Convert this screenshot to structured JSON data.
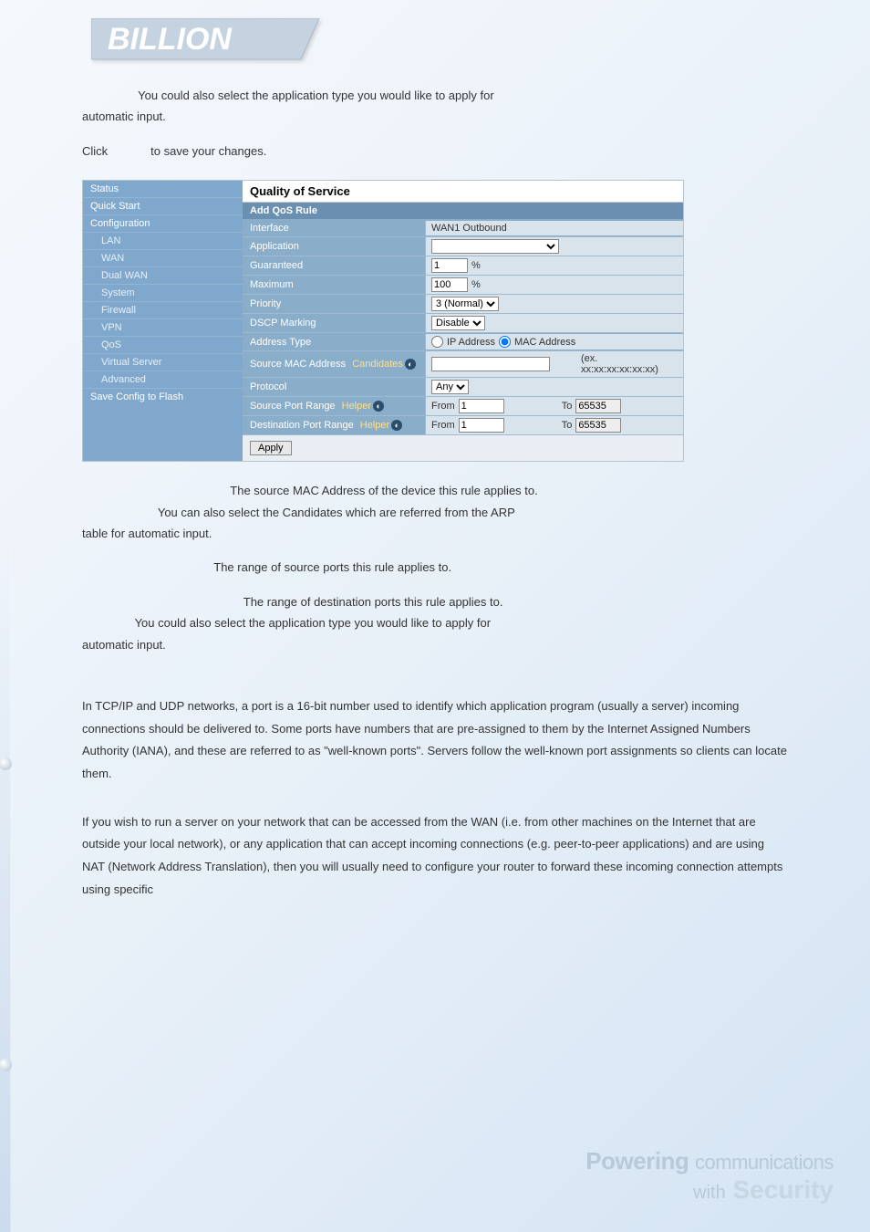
{
  "logo": {
    "color": "#b5c5d5"
  },
  "intro_para1_part1": "You could also select the application type you would like to apply for",
  "intro_para1_part2": "automatic input.",
  "click_text": "Click",
  "click_tail": "to save your changes.",
  "panel": {
    "sidebar": {
      "items": [
        {
          "label": "Status",
          "indent": false
        },
        {
          "label": "Quick Start",
          "indent": false
        },
        {
          "label": "Configuration",
          "indent": false
        },
        {
          "label": "LAN",
          "indent": true
        },
        {
          "label": "WAN",
          "indent": true
        },
        {
          "label": "Dual WAN",
          "indent": true
        },
        {
          "label": "System",
          "indent": true
        },
        {
          "label": "Firewall",
          "indent": true
        },
        {
          "label": "VPN",
          "indent": true
        },
        {
          "label": "QoS",
          "indent": true
        },
        {
          "label": "Virtual Server",
          "indent": true
        },
        {
          "label": "Advanced",
          "indent": true
        },
        {
          "label": "Save Config to Flash",
          "indent": false
        }
      ],
      "bg": "#7fa8cc"
    },
    "title": "Quality of Service",
    "subtitle": "Add QoS Rule",
    "rows": [
      {
        "label": "Interface",
        "type": "text",
        "value": "WAN1 Outbound"
      },
      {
        "label": "Application",
        "type": "select_empty",
        "value": ""
      },
      {
        "label": "Guaranteed",
        "type": "pct",
        "value": "1",
        "suffix": "%"
      },
      {
        "label": "Maximum",
        "type": "pct",
        "value": "100",
        "suffix": "%"
      },
      {
        "label": "Priority",
        "type": "select",
        "value": "3 (Normal)"
      },
      {
        "label": "DSCP Marking",
        "type": "select",
        "value": "Disable"
      },
      {
        "label": "Address Type",
        "type": "radio",
        "opt1": "IP Address",
        "opt2": "MAC Address",
        "checked": 2
      },
      {
        "label": "Source MAC Address",
        "sublink": "Candidates",
        "circ": true,
        "type": "mac",
        "value": "",
        "hint": "(ex. xx:xx:xx:xx:xx:xx)"
      },
      {
        "label": "Protocol",
        "type": "select",
        "value": "Any"
      },
      {
        "label": "Source Port Range",
        "sublink": "Helper",
        "circ": true,
        "type": "range",
        "from": "1",
        "to": "65535"
      },
      {
        "label": "Destination Port Range",
        "sublink": "Helper",
        "circ": true,
        "type": "range",
        "from": "1",
        "to": "65535"
      }
    ],
    "apply": "Apply",
    "row_bg": "#8aadc9",
    "field_bg": "#d8e3ec",
    "sub_bg": "#6a8fb0"
  },
  "src_mac_line1": "The source MAC Address of the device this rule applies to.",
  "candidates_line_part1": "You can also select the Candidates which are referred from the ARP",
  "candidates_line_part2": "table for automatic input.",
  "src_port_line": "The range of source ports this rule applies to.",
  "dst_port_line": "The range of destination ports this rule applies to.",
  "helper_line_part1": "You could also select the application type you would like to apply for",
  "helper_line_part2": "automatic input.",
  "vs_heading": "",
  "vs_p1": "In TCP/IP and UDP networks, a port is a 16-bit number used to identify which application program (usually a server) incoming connections should be delivered to. Some ports have numbers that are pre-assigned to them by the Internet Assigned Numbers Authority (IANA), and these are referred to as \"well-known ports\". Servers follow the well-known port assignments so clients can locate them.",
  "vs_p2": "If you wish to run a server on your network that can be accessed from the WAN (i.e. from other machines on the Internet that are outside your local network), or any application that can accept incoming connections (e.g. peer-to-peer applications) and are using NAT (Network Address Translation), then you will usually need to configure your router to forward these incoming connection attempts using specific",
  "footer": {
    "word1": "Powering",
    "word1_thin": "communications",
    "word2_thin": "with",
    "word2": "Security",
    "color1": "#b8c9da",
    "color2": "#c8d5e2"
  }
}
